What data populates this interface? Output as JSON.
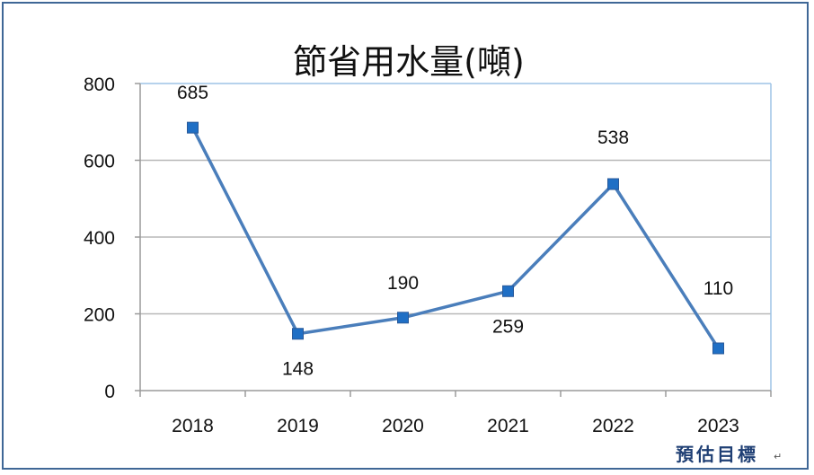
{
  "chart_data": {
    "type": "line",
    "title": "節省用水量(噸)",
    "categories": [
      "2018",
      "2019",
      "2020",
      "2021",
      "2022",
      "2023"
    ],
    "series": [
      {
        "values": [
          685,
          148,
          190,
          259,
          538,
          110
        ]
      }
    ],
    "data_labels": [
      "685",
      "148",
      "190",
      "259",
      "538",
      "110"
    ],
    "y_ticks": [
      "0",
      "200",
      "400",
      "600",
      "800"
    ],
    "ylim": [
      0,
      800
    ],
    "grid": true,
    "legend": "none",
    "annotation": "預估目標",
    "return_mark": "↵",
    "colors": {
      "line": "#4a7ebb",
      "marker": "#1f6fc5",
      "grid": "#b8b8b8",
      "frame": "#3f6796",
      "plot_border": "#9dc3e6",
      "annotation": "#1f3f74"
    }
  }
}
